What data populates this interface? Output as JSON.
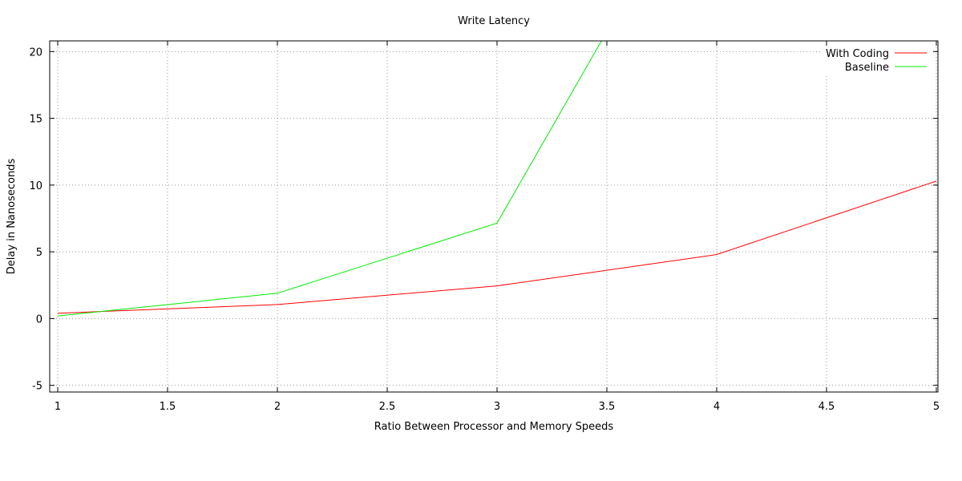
{
  "chart_data": {
    "type": "line",
    "title": "Write Latency",
    "xlabel": "Ratio Between Processor and Memory Speeds",
    "ylabel": "Delay in Nanoseconds",
    "xlim": [
      1,
      5
    ],
    "ylim": [
      -5,
      20
    ],
    "x_ticks": [
      1,
      1.5,
      2,
      2.5,
      3,
      3.5,
      4,
      4.5,
      5
    ],
    "y_ticks": [
      -5,
      0,
      5,
      10,
      15,
      20
    ],
    "grid": true,
    "legend_position": "top-right",
    "series": [
      {
        "name": "With Coding",
        "color": "#ff0000",
        "x": [
          1,
          2,
          3,
          4,
          5
        ],
        "y": [
          0.4,
          1.05,
          2.45,
          4.8,
          10.3
        ]
      },
      {
        "name": "Baseline",
        "color": "#00ee00",
        "x": [
          1,
          2,
          3,
          3.5
        ],
        "y": [
          0.2,
          1.9,
          7.15,
          21.5
        ]
      }
    ]
  }
}
